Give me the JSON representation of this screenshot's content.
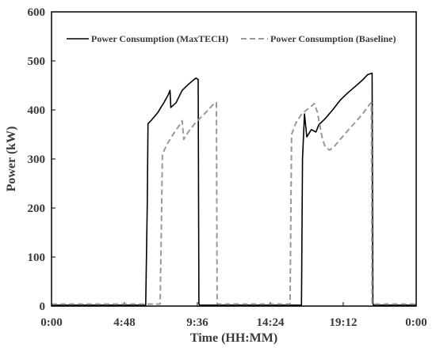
{
  "chart_data": {
    "type": "line",
    "title": "",
    "xlabel": "Time (HH:MM)",
    "ylabel": "Power (kW)",
    "x_unit": "hours",
    "xlim": [
      0,
      24
    ],
    "ylim": [
      0,
      600
    ],
    "x_ticks": [
      0,
      4.8,
      9.6,
      14.4,
      19.2,
      24
    ],
    "x_tick_labels": [
      "0:00",
      "4:48",
      "9:36",
      "14:24",
      "19:12",
      "0:00"
    ],
    "y_ticks": [
      0,
      100,
      200,
      300,
      400,
      500,
      600
    ],
    "y_tick_labels": [
      "0",
      "100",
      "200",
      "300",
      "400",
      "500",
      "600"
    ],
    "grid": false,
    "legend_position": "top",
    "series": [
      {
        "name": "Power Consumption (MaxTECH)",
        "color": "#000000",
        "style": "solid",
        "points": [
          [
            0,
            2
          ],
          [
            6.2,
            2
          ],
          [
            6.3,
            210
          ],
          [
            6.35,
            372
          ],
          [
            6.6,
            380
          ],
          [
            7.0,
            395
          ],
          [
            7.4,
            415
          ],
          [
            7.7,
            432
          ],
          [
            7.8,
            440
          ],
          [
            7.85,
            405
          ],
          [
            8.2,
            415
          ],
          [
            8.6,
            440
          ],
          [
            9.0,
            452
          ],
          [
            9.3,
            460
          ],
          [
            9.5,
            465
          ],
          [
            9.65,
            462
          ],
          [
            9.7,
            5
          ],
          [
            9.75,
            2
          ],
          [
            16.0,
            2
          ],
          [
            16.45,
            2
          ],
          [
            16.52,
            300
          ],
          [
            16.65,
            392
          ],
          [
            16.8,
            345
          ],
          [
            17.1,
            360
          ],
          [
            17.4,
            355
          ],
          [
            17.6,
            370
          ],
          [
            18.0,
            382
          ],
          [
            18.5,
            400
          ],
          [
            19.0,
            420
          ],
          [
            19.5,
            435
          ],
          [
            20.0,
            448
          ],
          [
            20.5,
            462
          ],
          [
            20.8,
            472
          ],
          [
            21.1,
            475
          ],
          [
            21.15,
            5
          ],
          [
            21.2,
            2
          ],
          [
            24,
            2
          ]
        ]
      },
      {
        "name": "Power Consumption (Baseline)",
        "color": "#999999",
        "style": "dashed",
        "points": [
          [
            0,
            4
          ],
          [
            7.15,
            4
          ],
          [
            7.2,
            100
          ],
          [
            7.3,
            310
          ],
          [
            7.6,
            330
          ],
          [
            8.0,
            350
          ],
          [
            8.4,
            368
          ],
          [
            8.6,
            378
          ],
          [
            8.7,
            340
          ],
          [
            9.0,
            355
          ],
          [
            9.5,
            375
          ],
          [
            10.0,
            390
          ],
          [
            10.4,
            403
          ],
          [
            10.7,
            413
          ],
          [
            10.85,
            415
          ],
          [
            10.9,
            5
          ],
          [
            11.0,
            4
          ],
          [
            15.7,
            4
          ],
          [
            15.8,
            350
          ],
          [
            16.1,
            375
          ],
          [
            16.5,
            393
          ],
          [
            17.0,
            405
          ],
          [
            17.3,
            413
          ],
          [
            17.5,
            395
          ],
          [
            17.8,
            345
          ],
          [
            18.0,
            325
          ],
          [
            18.3,
            318
          ],
          [
            18.6,
            325
          ],
          [
            19.0,
            340
          ],
          [
            19.5,
            358
          ],
          [
            20.0,
            375
          ],
          [
            20.5,
            393
          ],
          [
            20.9,
            410
          ],
          [
            21.05,
            415
          ],
          [
            21.1,
            5
          ],
          [
            21.2,
            4
          ],
          [
            24,
            4
          ]
        ]
      }
    ]
  }
}
